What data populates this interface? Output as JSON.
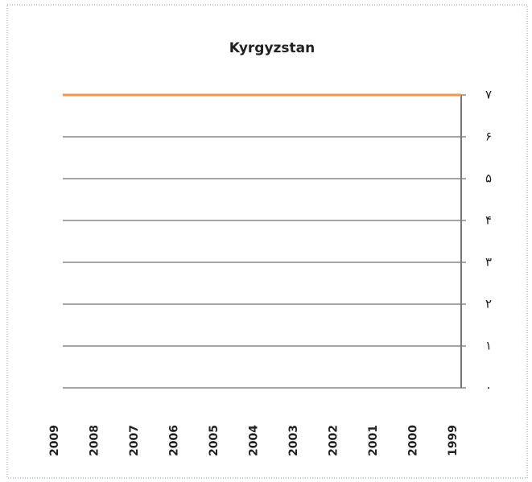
{
  "chart_data": {
    "type": "line",
    "title": "Kyrgyzstan",
    "categories": [
      "2009",
      "2008",
      "2007",
      "2006",
      "2005",
      "2004",
      "2003",
      "2002",
      "2001",
      "2000",
      "1999"
    ],
    "series": [
      {
        "name": "Kyrgyzstan",
        "color": "#f79646",
        "values": [
          7,
          7,
          7,
          7,
          7,
          7,
          7,
          7,
          7,
          7,
          7
        ]
      }
    ],
    "ylim": [
      0,
      7
    ],
    "yticks": [
      {
        "value": 0,
        "label": "۰"
      },
      {
        "value": 1,
        "label": "۱"
      },
      {
        "value": 2,
        "label": "۲"
      },
      {
        "value": 3,
        "label": "۳"
      },
      {
        "value": 4,
        "label": "۴"
      },
      {
        "value": 5,
        "label": "۵"
      },
      {
        "value": 6,
        "label": "۶"
      },
      {
        "value": 7,
        "label": "۷"
      }
    ],
    "grid": true,
    "y_axis_side": "right"
  }
}
